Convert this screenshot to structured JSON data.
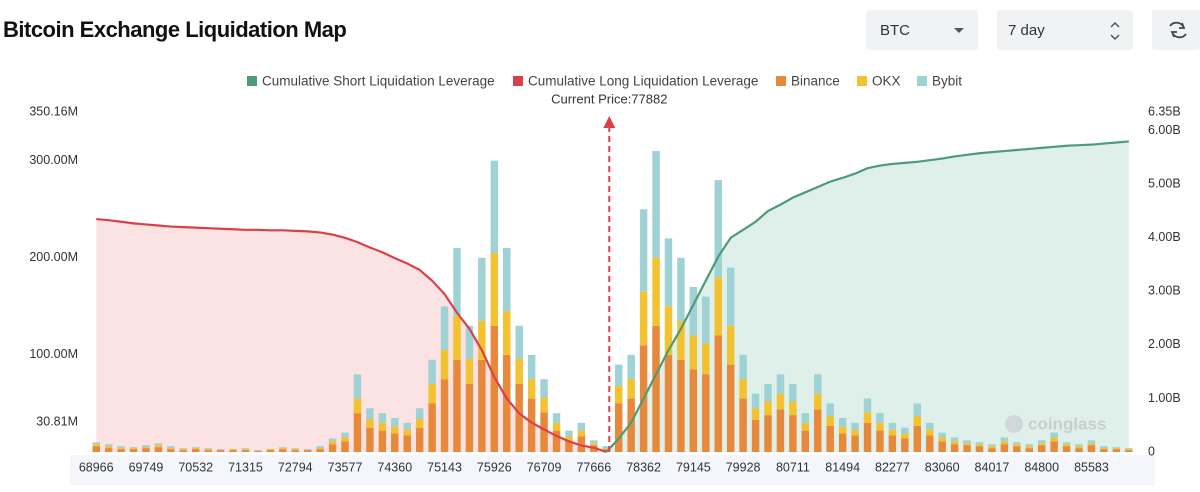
{
  "header": {
    "title": "Bitcoin Exchange Liquidation Map",
    "coin": "BTC",
    "period": "7 day"
  },
  "watermark": "coinglass",
  "chart_data": {
    "type": "bar",
    "stacked": true,
    "annotation": "Current Price:77882",
    "current_price": 77882,
    "categories": [
      68966,
      null,
      null,
      null,
      69749,
      null,
      null,
      null,
      70532,
      null,
      null,
      null,
      71315,
      null,
      null,
      null,
      72794,
      null,
      null,
      null,
      73577,
      null,
      null,
      null,
      74360,
      null,
      null,
      null,
      75143,
      null,
      null,
      null,
      75926,
      null,
      null,
      null,
      76709,
      null,
      null,
      null,
      77666,
      null,
      null,
      null,
      78362,
      null,
      null,
      null,
      79145,
      null,
      null,
      null,
      79928,
      null,
      null,
      null,
      80711,
      null,
      null,
      null,
      81494,
      null,
      null,
      null,
      82277,
      null,
      null,
      null,
      83060,
      null,
      null,
      null,
      84017,
      null,
      null,
      null,
      84800,
      null,
      null,
      null,
      85583,
      null,
      null,
      null
    ],
    "ylim": [
      0,
      350.16
    ],
    "yticks": [
      {
        "value": 30.81,
        "label": "30.81M"
      },
      {
        "value": 100,
        "label": "100.00M"
      },
      {
        "value": 200,
        "label": "200.00M"
      },
      {
        "value": 300,
        "label": "300.00M"
      },
      {
        "value": 350.16,
        "label": "350.16M"
      }
    ],
    "y2lim": [
      0,
      6.35
    ],
    "y2ticks": [
      0,
      {
        "value": 1,
        "label": "1.00B"
      },
      {
        "value": 2,
        "label": "2.00B"
      },
      {
        "value": 3,
        "label": "3.00B"
      },
      {
        "value": 4,
        "label": "4.00B"
      },
      {
        "value": 5,
        "label": "5.00B"
      },
      {
        "value": 6,
        "label": "6.00B"
      },
      {
        "value": 6.35,
        "label": "6.35B"
      }
    ],
    "series": [
      {
        "name": "Cumulative Short Liquidation Leverage",
        "type": "line",
        "axis": "y2",
        "color": "#4c9c78",
        "area_color": "#dff0ea",
        "values": [
          null,
          null,
          null,
          null,
          null,
          null,
          null,
          null,
          null,
          null,
          null,
          null,
          null,
          null,
          null,
          null,
          null,
          null,
          null,
          null,
          null,
          null,
          null,
          null,
          null,
          null,
          null,
          null,
          null,
          null,
          null,
          null,
          null,
          null,
          null,
          null,
          null,
          null,
          null,
          null,
          null,
          0,
          0.25,
          0.55,
          1.0,
          1.45,
          1.9,
          2.3,
          2.75,
          3.2,
          3.65,
          4.0,
          4.15,
          4.3,
          4.5,
          4.62,
          4.75,
          4.85,
          4.95,
          5.05,
          5.12,
          5.2,
          5.3,
          5.35,
          5.38,
          5.4,
          5.42,
          5.45,
          5.48,
          5.52,
          5.55,
          5.58,
          5.6,
          5.62,
          5.64,
          5.66,
          5.68,
          5.7,
          5.72,
          5.73,
          5.74,
          5.76,
          5.78,
          5.8
        ]
      },
      {
        "name": "Cumulative Long Liquidation Leverage",
        "type": "line",
        "axis": "y2",
        "color": "#d9414a",
        "area_color": "#fbe3e3",
        "values": [
          4.35,
          4.33,
          4.3,
          4.27,
          4.25,
          4.23,
          4.21,
          4.2,
          4.19,
          4.18,
          4.17,
          4.16,
          4.15,
          4.15,
          4.14,
          4.14,
          4.13,
          4.12,
          4.1,
          4.06,
          4.0,
          3.92,
          3.82,
          3.73,
          3.62,
          3.52,
          3.4,
          3.2,
          2.95,
          2.6,
          2.3,
          1.9,
          1.4,
          1.0,
          0.72,
          0.55,
          0.42,
          0.3,
          0.2,
          0.12,
          0.08,
          0,
          null,
          null,
          null,
          null,
          null,
          null,
          null,
          null,
          null,
          null,
          null,
          null,
          null,
          null,
          null,
          null,
          null,
          null,
          null,
          null,
          null,
          null,
          null,
          null,
          null,
          null,
          null,
          null,
          null,
          null,
          null,
          null,
          null,
          null,
          null,
          null,
          null,
          null,
          null,
          null,
          null,
          null
        ]
      },
      {
        "name": "Binance",
        "type": "bar",
        "color": "#e8883a",
        "values": [
          6,
          4,
          3,
          3,
          4,
          5,
          3,
          2,
          3,
          2,
          2,
          2,
          2,
          1,
          2,
          3,
          2,
          2,
          3,
          8,
          11,
          40,
          25,
          22,
          19,
          17,
          25,
          50,
          75,
          95,
          70,
          95,
          130,
          100,
          70,
          55,
          41,
          22,
          12,
          16,
          7,
          3,
          50,
          55,
          110,
          130,
          100,
          95,
          85,
          80,
          120,
          90,
          55,
          33,
          38,
          44,
          38,
          22,
          44,
          27,
          19,
          17,
          30,
          22,
          17,
          14,
          27,
          17,
          11,
          8,
          7,
          6,
          4,
          8,
          6,
          4,
          7,
          11,
          6,
          4,
          7,
          3,
          3,
          2
        ]
      },
      {
        "name": "OKX",
        "type": "bar",
        "color": "#f2c230",
        "values": [
          2,
          2,
          1,
          1,
          1,
          2,
          1,
          1,
          1,
          1,
          0,
          1,
          1,
          0,
          1,
          1,
          1,
          0,
          1,
          3,
          4,
          15,
          9,
          8,
          7,
          6,
          9,
          20,
          30,
          45,
          26,
          40,
          75,
          45,
          26,
          20,
          15,
          8,
          4,
          6,
          2,
          1,
          18,
          20,
          55,
          70,
          50,
          40,
          35,
          32,
          60,
          40,
          20,
          12,
          14,
          16,
          14,
          8,
          16,
          10,
          7,
          6,
          11,
          8,
          6,
          5,
          10,
          6,
          4,
          3,
          2,
          2,
          2,
          3,
          2,
          2,
          2,
          4,
          2,
          2,
          2,
          1,
          1,
          1
        ]
      },
      {
        "name": "Bybit",
        "type": "bar",
        "color": "#9ed2d4",
        "values": [
          2,
          2,
          2,
          1,
          2,
          2,
          2,
          1,
          1,
          1,
          1,
          0,
          1,
          1,
          0,
          1,
          1,
          1,
          2,
          3,
          5,
          25,
          11,
          10,
          9,
          7,
          11,
          25,
          45,
          70,
          34,
          65,
          95,
          65,
          34,
          25,
          19,
          10,
          6,
          8,
          3,
          2,
          22,
          25,
          85,
          110,
          70,
          65,
          50,
          48,
          100,
          60,
          25,
          15,
          18,
          20,
          18,
          10,
          20,
          13,
          9,
          7,
          14,
          10,
          7,
          6,
          13,
          7,
          5,
          4,
          3,
          2,
          2,
          4,
          2,
          2,
          3,
          5,
          2,
          2,
          3,
          2,
          1,
          1
        ]
      }
    ]
  }
}
